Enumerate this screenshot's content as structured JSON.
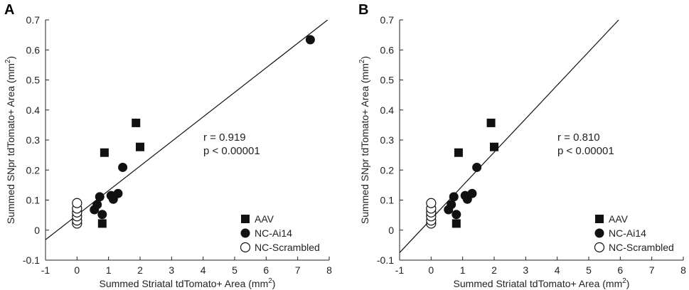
{
  "chart_data": [
    {
      "type": "scatter",
      "panel_label": "A",
      "xlabel": "Summed Striatal tdTomato+ Area (mm",
      "xlabel_sup": "2",
      "xlabel_end": ")",
      "ylabel": "Summed SNpr tdTomato+ Area (mm",
      "ylabel_sup": "2",
      "ylabel_end": ")",
      "xlim": [
        -1,
        8
      ],
      "ylim": [
        -0.1,
        0.7
      ],
      "xticks": [
        "-1",
        "0",
        "1",
        "2",
        "3",
        "4",
        "5",
        "6",
        "7",
        "8"
      ],
      "yticks": [
        "-0.1",
        "0",
        "0.1",
        "0.2",
        "0.3",
        "0.4",
        "0.5",
        "0.6",
        "0.7"
      ],
      "stats": {
        "r": "r = 0.919",
        "p": "p < 0.00001"
      },
      "regression_line": {
        "x": [
          -1,
          7.95
        ],
        "y": [
          -0.032,
          0.7
        ]
      },
      "legend": [
        {
          "label": "AAV",
          "marker": "square-filled"
        },
        {
          "label": "NC-Ai14",
          "marker": "circle-filled"
        },
        {
          "label": "NC-Scrambled",
          "marker": "circle-open"
        }
      ],
      "series": [
        {
          "name": "AAV",
          "marker": "square-filled",
          "points": [
            [
              0.8,
              0.022
            ],
            [
              0.87,
              0.258
            ],
            [
              1.87,
              0.357
            ],
            [
              2.0,
              0.277
            ]
          ]
        },
        {
          "name": "NC-Ai14",
          "marker": "circle-filled",
          "points": [
            [
              0.55,
              0.068
            ],
            [
              0.64,
              0.085
            ],
            [
              0.72,
              0.111
            ],
            [
              0.8,
              0.052
            ],
            [
              1.08,
              0.115
            ],
            [
              1.15,
              0.103
            ],
            [
              1.3,
              0.122
            ],
            [
              1.45,
              0.209
            ],
            [
              7.4,
              0.634
            ]
          ]
        },
        {
          "name": "NC-Scrambled",
          "marker": "circle-open",
          "points": [
            [
              0.0,
              0.022
            ],
            [
              0.0,
              0.032
            ],
            [
              0.0,
              0.046
            ],
            [
              0.0,
              0.059
            ],
            [
              0.0,
              0.072
            ],
            [
              0.0,
              0.09
            ]
          ]
        }
      ]
    },
    {
      "type": "scatter",
      "panel_label": "B",
      "xlabel": "Summed Striatal tdTomato+ Area (mm",
      "xlabel_sup": "2",
      "xlabel_end": ")",
      "ylabel": "Summed SNpr tdTomato+ Area (mm",
      "ylabel_sup": "2",
      "ylabel_end": ")",
      "xlim": [
        -1,
        8
      ],
      "ylim": [
        -0.1,
        0.7
      ],
      "xticks": [
        "-1",
        "0",
        "1",
        "2",
        "3",
        "4",
        "5",
        "6",
        "7",
        "8"
      ],
      "yticks": [
        "-0.1",
        "0",
        "0.1",
        "0.2",
        "0.3",
        "0.4",
        "0.5",
        "0.6",
        "0.7"
      ],
      "stats": {
        "r": "r = 0.810",
        "p": "p < 0.00001"
      },
      "regression_line": {
        "x": [
          -1,
          5.95
        ],
        "y": [
          -0.075,
          0.7
        ]
      },
      "legend": [
        {
          "label": "AAV",
          "marker": "square-filled"
        },
        {
          "label": "NC-Ai14",
          "marker": "circle-filled"
        },
        {
          "label": "NC-Scrambled",
          "marker": "circle-open"
        }
      ],
      "series": [
        {
          "name": "AAV",
          "marker": "square-filled",
          "points": [
            [
              0.8,
              0.022
            ],
            [
              0.87,
              0.258
            ],
            [
              1.9,
              0.357
            ],
            [
              2.0,
              0.277
            ]
          ]
        },
        {
          "name": "NC-Ai14",
          "marker": "circle-filled",
          "points": [
            [
              0.55,
              0.068
            ],
            [
              0.64,
              0.085
            ],
            [
              0.72,
              0.111
            ],
            [
              0.8,
              0.052
            ],
            [
              1.08,
              0.115
            ],
            [
              1.15,
              0.103
            ],
            [
              1.3,
              0.122
            ],
            [
              1.45,
              0.209
            ]
          ]
        },
        {
          "name": "NC-Scrambled",
          "marker": "circle-open",
          "points": [
            [
              0.0,
              0.022
            ],
            [
              0.0,
              0.032
            ],
            [
              0.0,
              0.046
            ],
            [
              0.0,
              0.059
            ],
            [
              0.0,
              0.072
            ],
            [
              0.0,
              0.09
            ]
          ]
        }
      ]
    }
  ]
}
